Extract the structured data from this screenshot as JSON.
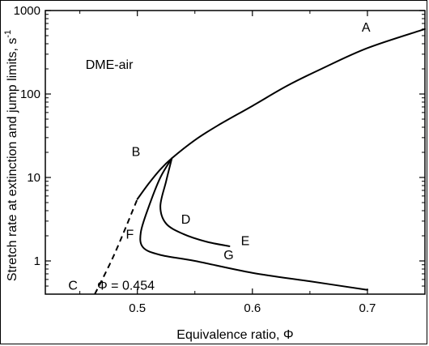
{
  "chart_data": {
    "type": "line",
    "title": "",
    "xlabel": "Equivalence ratio, Φ",
    "ylabel_main": "Stretch rate at extinction and jump limits, s",
    "ylabel_exp": "-1",
    "xlim": [
      0.42,
      0.75
    ],
    "ylim": [
      0.4,
      1000
    ],
    "yscale": "log",
    "x_ticks": [
      0.5,
      0.6,
      0.7
    ],
    "x_tick_labels": [
      "0.5",
      "0.6",
      "0.7"
    ],
    "y_ticks": [
      1,
      10,
      100,
      1000
    ],
    "y_tick_labels": [
      "1",
      "10",
      "100",
      "1000"
    ],
    "grid": false,
    "legend": "none",
    "series": [
      {
        "style": "solid",
        "points": [
          [
            0.5,
            5.5
          ],
          [
            0.51,
            8.5
          ],
          [
            0.52,
            12.5
          ],
          [
            0.53,
            17
          ],
          [
            0.55,
            28
          ],
          [
            0.57,
            42
          ],
          [
            0.6,
            72
          ],
          [
            0.63,
            125
          ],
          [
            0.66,
            200
          ],
          [
            0.7,
            355
          ],
          [
            0.75,
            600
          ]
        ]
      },
      {
        "style": "solid",
        "points": [
          [
            0.53,
            17
          ],
          [
            0.525,
            9
          ],
          [
            0.52,
            4.5
          ],
          [
            0.525,
            2.8
          ],
          [
            0.54,
            2.1
          ],
          [
            0.56,
            1.7
          ],
          [
            0.58,
            1.5
          ]
        ]
      },
      {
        "style": "solid",
        "points": [
          [
            0.53,
            17
          ],
          [
            0.52,
            10
          ],
          [
            0.51,
            4.5
          ],
          [
            0.503,
            2.2
          ],
          [
            0.505,
            1.45
          ],
          [
            0.52,
            1.18
          ],
          [
            0.55,
            1
          ],
          [
            0.6,
            0.72
          ],
          [
            0.65,
            0.57
          ],
          [
            0.7,
            0.45
          ]
        ]
      },
      {
        "style": "dashed",
        "points": [
          [
            0.463,
            0.4
          ],
          [
            0.48,
            1.2
          ],
          [
            0.5,
            5.5
          ]
        ]
      }
    ],
    "annotations": [
      {
        "text": "DME-air",
        "x": 0.455,
        "y": 200
      },
      {
        "text": "A",
        "x": 0.695,
        "y": 560
      },
      {
        "text": "B",
        "x": 0.495,
        "y": 18
      },
      {
        "text": "C",
        "x": 0.44,
        "y": 0.45
      },
      {
        "text": "D",
        "x": 0.538,
        "y": 2.8
      },
      {
        "text": "E",
        "x": 0.59,
        "y": 1.55
      },
      {
        "text": "F",
        "x": 0.49,
        "y": 1.85
      },
      {
        "text": "G",
        "x": 0.575,
        "y": 1.05
      },
      {
        "text": "Φ = 0.454",
        "x": 0.465,
        "y": 0.45
      }
    ]
  }
}
